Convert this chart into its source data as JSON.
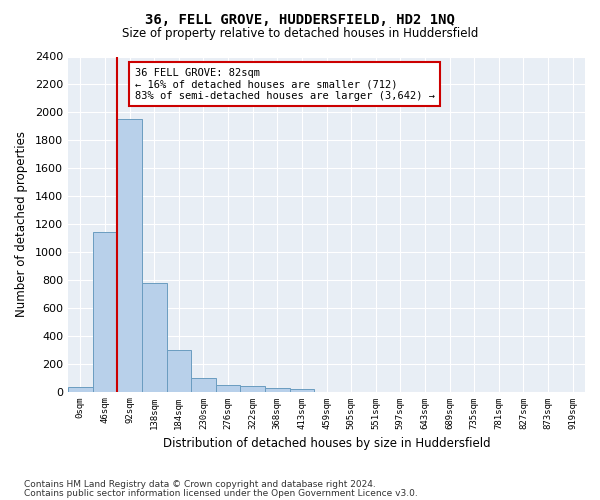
{
  "title": "36, FELL GROVE, HUDDERSFIELD, HD2 1NQ",
  "subtitle": "Size of property relative to detached houses in Huddersfield",
  "xlabel": "Distribution of detached houses by size in Huddersfield",
  "ylabel": "Number of detached properties",
  "bin_labels": [
    "0sqm",
    "46sqm",
    "92sqm",
    "138sqm",
    "184sqm",
    "230sqm",
    "276sqm",
    "322sqm",
    "368sqm",
    "413sqm",
    "459sqm",
    "505sqm",
    "551sqm",
    "597sqm",
    "643sqm",
    "689sqm",
    "735sqm",
    "781sqm",
    "827sqm",
    "873sqm",
    "919sqm"
  ],
  "bar_values": [
    35,
    1140,
    1950,
    775,
    300,
    100,
    45,
    38,
    25,
    18,
    0,
    0,
    0,
    0,
    0,
    0,
    0,
    0,
    0,
    0,
    0
  ],
  "bar_color": "#b8d0ea",
  "bar_edge_color": "#6a9cc0",
  "marker_line_color": "#cc0000",
  "ylim": [
    0,
    2400
  ],
  "yticks": [
    0,
    200,
    400,
    600,
    800,
    1000,
    1200,
    1400,
    1600,
    1800,
    2000,
    2200,
    2400
  ],
  "annotation_text": "36 FELL GROVE: 82sqm\n← 16% of detached houses are smaller (712)\n83% of semi-detached houses are larger (3,642) →",
  "annotation_box_color": "#ffffff",
  "annotation_box_edge": "#cc0000",
  "footnote1": "Contains HM Land Registry data © Crown copyright and database right 2024.",
  "footnote2": "Contains public sector information licensed under the Open Government Licence v3.0.",
  "plot_background": "#e8eef5"
}
